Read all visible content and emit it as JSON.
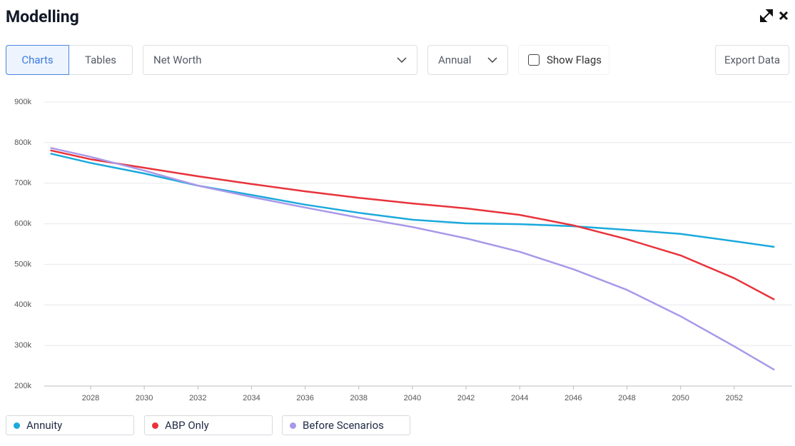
{
  "header": {
    "title": "Modelling"
  },
  "controls": {
    "tabs": [
      "Charts",
      "Tables"
    ],
    "metric": "Net Worth",
    "period": "Annual",
    "flags": "Show Flags",
    "export": "Export Data"
  },
  "chart_data": {
    "type": "line",
    "x": [
      2026.5,
      2028,
      2030,
      2032,
      2034,
      2036,
      2038,
      2040,
      2042,
      2044,
      2046,
      2048,
      2050,
      2052,
      2053.5
    ],
    "xlim": [
      2026.27,
      2054.16
    ],
    "xticks": [
      2028,
      2030,
      2032,
      2034,
      2036,
      2038,
      2040,
      2042,
      2044,
      2046,
      2048,
      2050,
      2052
    ],
    "ylim": [
      200000,
      900000
    ],
    "yticks": [
      {
        "value": 200000,
        "label": "200k"
      },
      {
        "value": 300000,
        "label": "300k"
      },
      {
        "value": 400000,
        "label": "400k"
      },
      {
        "value": 500000,
        "label": "500k"
      },
      {
        "value": 600000,
        "label": "600k"
      },
      {
        "value": 700000,
        "label": "700k"
      },
      {
        "value": 800000,
        "label": "800k"
      },
      {
        "value": 900000,
        "label": "900k"
      }
    ],
    "grid": true,
    "series": [
      {
        "name": "Annuity",
        "color": "#1ba9dc",
        "values": [
          773000,
          750000,
          724000,
          694000,
          671000,
          647000,
          627000,
          610000,
          601000,
          599000,
          594000,
          585000,
          575000,
          557000,
          543000
        ]
      },
      {
        "name": "ABP Only",
        "color": "#e8333a",
        "values": [
          781000,
          759000,
          738000,
          717000,
          698000,
          680000,
          664000,
          650000,
          638000,
          622000,
          596000,
          562000,
          522000,
          466000,
          413000
        ]
      },
      {
        "name": "Before Scenarios",
        "color": "#a998e8",
        "values": [
          787000,
          765000,
          731000,
          694000,
          666000,
          640000,
          615000,
          592000,
          564000,
          531000,
          488000,
          437000,
          372000,
          298000,
          240000
        ]
      }
    ]
  }
}
